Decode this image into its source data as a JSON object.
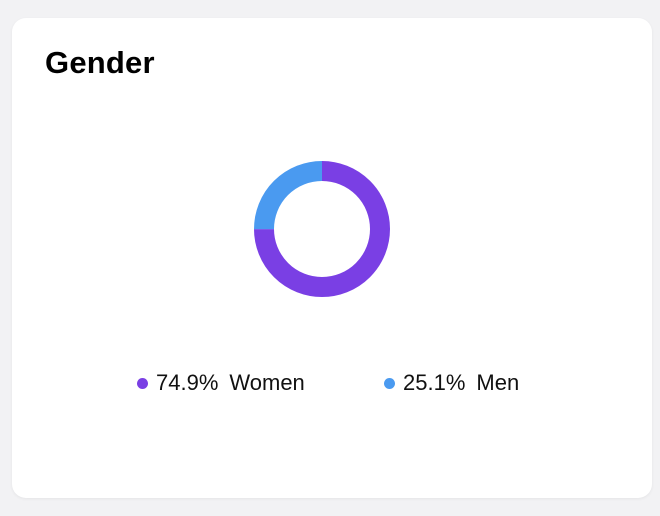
{
  "card": {
    "title": "Gender"
  },
  "colors": {
    "women": "#7a3fe4",
    "men": "#4a9af0"
  },
  "chart_data": {
    "type": "pie",
    "style": "donut",
    "title": "Gender",
    "series": [
      {
        "name": "Women",
        "value": 74.9,
        "label": "74.9%",
        "color": "#7a3fe4"
      },
      {
        "name": "Men",
        "value": 25.1,
        "label": "25.1%",
        "color": "#4a9af0"
      }
    ]
  },
  "legend": [
    {
      "pct": "74.9%",
      "label": "Women"
    },
    {
      "pct": "25.1%",
      "label": "Men"
    }
  ]
}
